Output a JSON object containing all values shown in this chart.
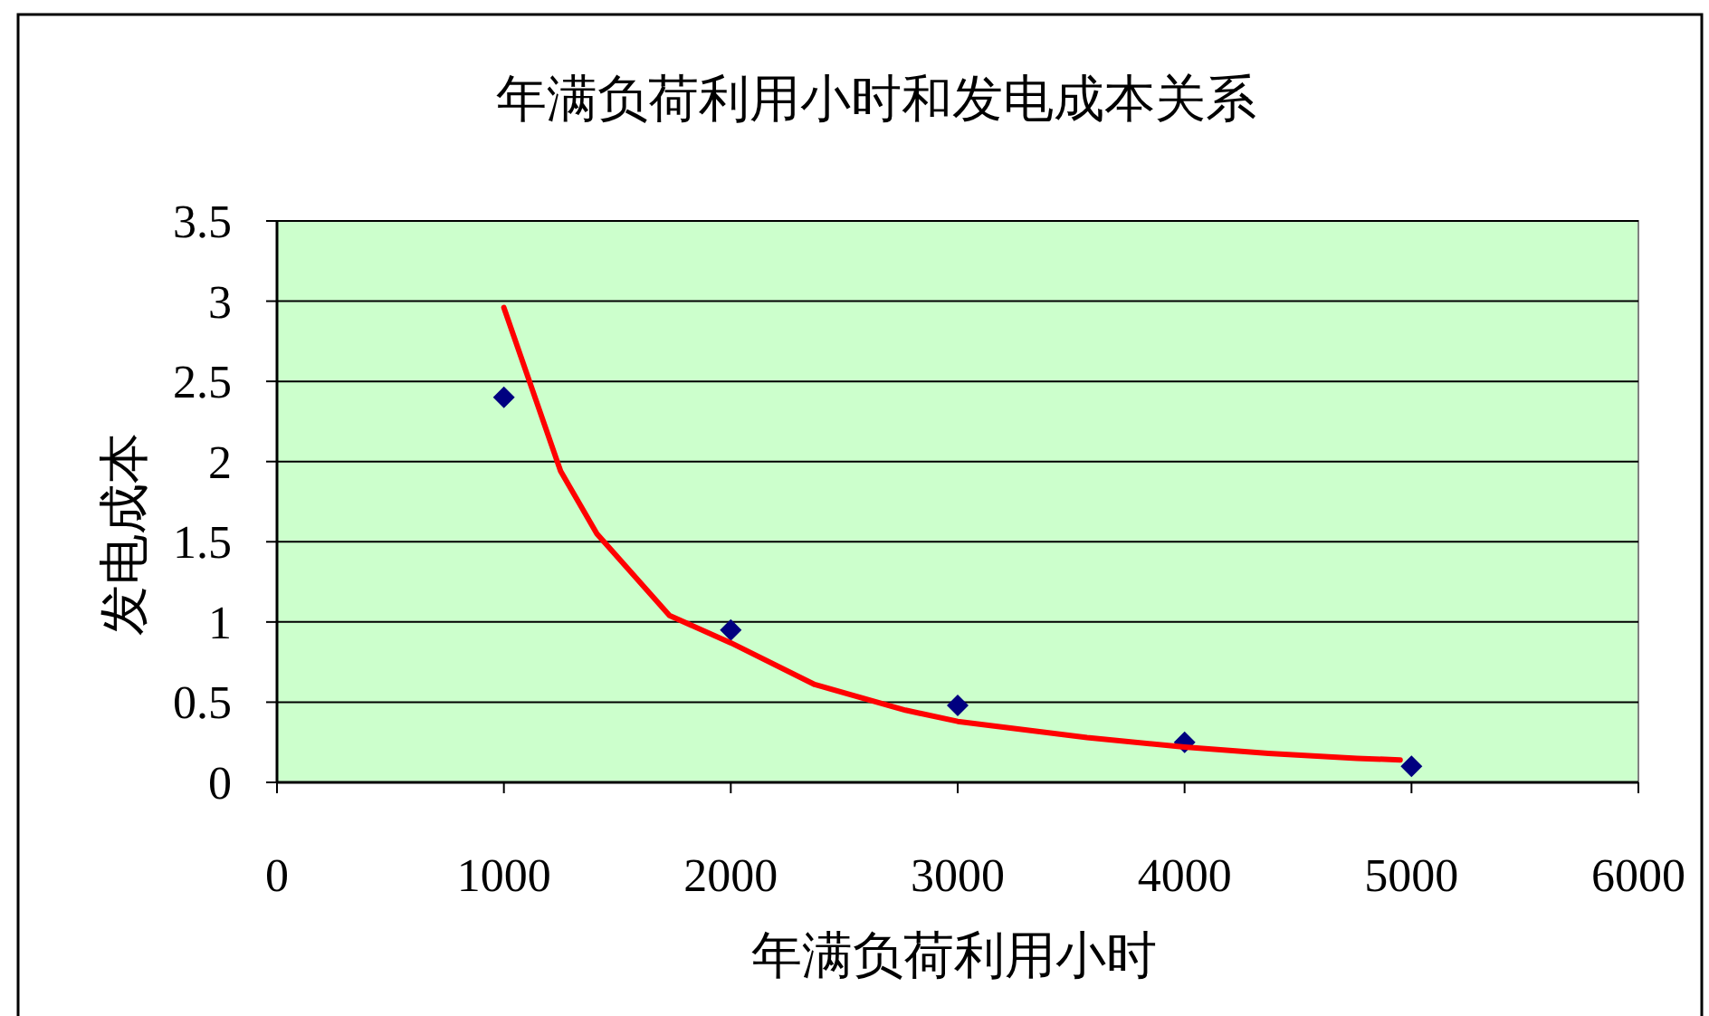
{
  "chart_data": {
    "type": "scatter",
    "title": "年满负荷利用小时和发电成本关系",
    "xlabel": "年满负荷利用小时",
    "ylabel": "发电成本",
    "xlim": [
      0,
      6000
    ],
    "xticks": [
      0,
      1000,
      2000,
      3000,
      4000,
      5000,
      6000
    ],
    "ylim": [
      0,
      3.5
    ],
    "yticks": [
      0,
      0.5,
      1,
      1.5,
      2,
      2.5,
      3,
      3.5
    ],
    "grid": "y",
    "series": [
      {
        "type": "scatter",
        "marker": "diamond",
        "color": "#000080",
        "x": [
          1000,
          2000,
          3000,
          4000,
          5000
        ],
        "values": [
          2.4,
          0.95,
          0.48,
          0.25,
          0.1
        ]
      },
      {
        "type": "line",
        "color": "#ff0000",
        "line_style": "solid",
        "x": [
          1000,
          1250,
          1410,
          1730,
          2000,
          2370,
          2770,
          3000,
          3570,
          4000,
          4370,
          4760,
          4950
        ],
        "values": [
          2.96,
          1.94,
          1.55,
          1.04,
          0.87,
          0.61,
          0.45,
          0.38,
          0.28,
          0.22,
          0.18,
          0.15,
          0.14
        ]
      }
    ]
  }
}
